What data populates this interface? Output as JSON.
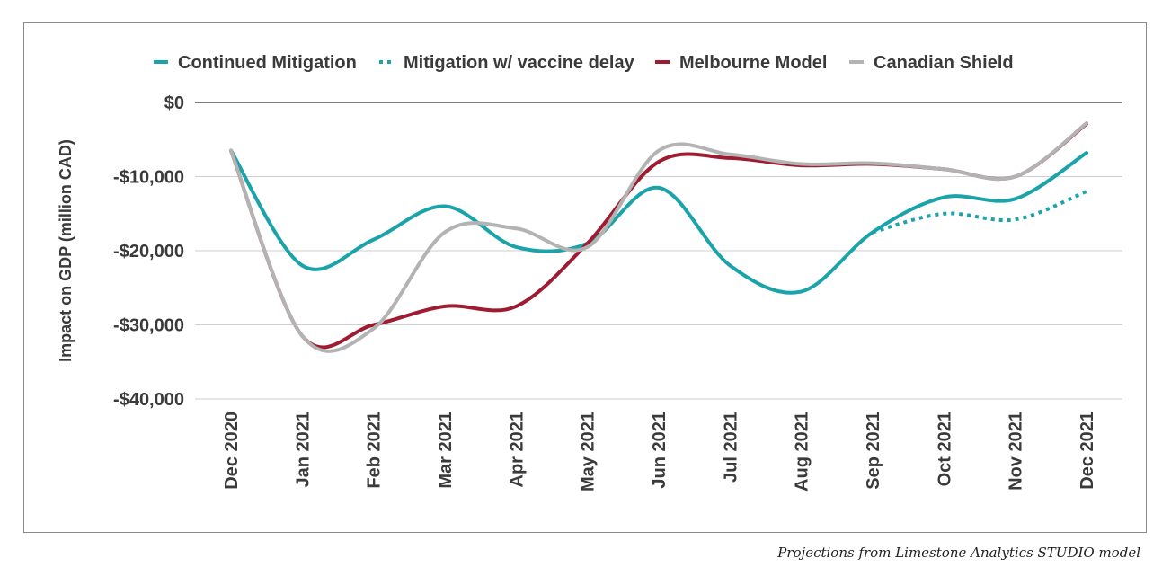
{
  "chart_data": {
    "type": "line",
    "title": "",
    "xlabel": "",
    "ylabel": "Impact on GDP (million CAD)",
    "categories": [
      "Dec 2020",
      "Jan 2021",
      "Feb 2021",
      "Mar 2021",
      "Apr 2021",
      "May 2021",
      "Jun 2021",
      "Jul 2021",
      "Aug 2021",
      "Sep 2021",
      "Oct 2021",
      "Nov 2021",
      "Dec 2021"
    ],
    "ylim": [
      -40000,
      0
    ],
    "yticks": [
      0,
      -10000,
      -20000,
      -30000,
      -40000
    ],
    "ytick_labels": [
      "$0",
      "-$10,000",
      "-$20,000",
      "-$30,000",
      "-$40,000"
    ],
    "grid": true,
    "legend_position": "top",
    "series": [
      {
        "name": "Continued Mitigation",
        "color": "#1aa3a8",
        "dashed": false,
        "values": [
          -6500,
          -22000,
          -18500,
          -14000,
          -19500,
          -19000,
          -11500,
          -22000,
          -25500,
          -17500,
          -12800,
          -13000,
          -6800
        ]
      },
      {
        "name": "Mitigation w/ vaccine delay",
        "color": "#1aa3a8",
        "dashed": true,
        "values": [
          null,
          null,
          null,
          null,
          null,
          null,
          null,
          null,
          null,
          -17500,
          -15000,
          -15800,
          -12000
        ]
      },
      {
        "name": "Melbourne Model",
        "color": "#9e1b32",
        "dashed": false,
        "values": [
          -6500,
          -31500,
          -30000,
          -27500,
          -27500,
          -19000,
          -8000,
          -7500,
          -8500,
          -8300,
          -9000,
          -10000,
          -2900
        ]
      },
      {
        "name": "Canadian Shield",
        "color": "#b3b3b3",
        "dashed": false,
        "values": [
          -6500,
          -31500,
          -30500,
          -17500,
          -17000,
          -19500,
          -6500,
          -7000,
          -8300,
          -8200,
          -9000,
          -10000,
          -2800
        ]
      }
    ]
  },
  "caption": "Projections from Limestone Analytics STUDIO model"
}
